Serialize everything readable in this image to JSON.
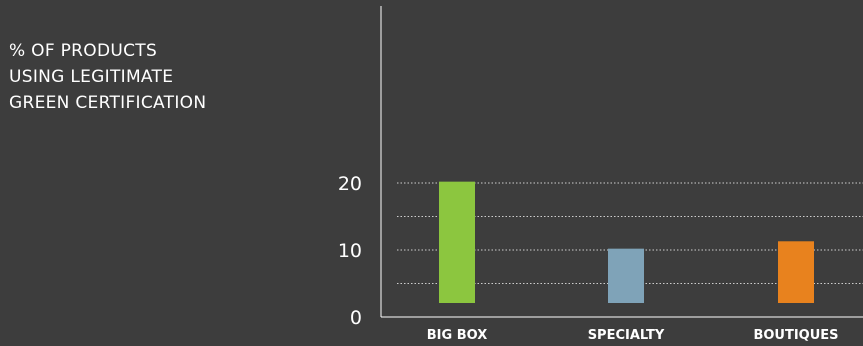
{
  "chart_data": {
    "type": "bar",
    "title": "% OF PRODUCTS\nUSING LEGITIMATE\nGREEN CERTIFICATION",
    "categories": [
      "BIG BOX",
      "SPECIALTY",
      "BOUTIQUES"
    ],
    "values": [
      20.2,
      10.2,
      11.3
    ],
    "colors": [
      "#8cc63f",
      "#7fa3b8",
      "#e8821e"
    ],
    "yticks": [
      0,
      10,
      20
    ],
    "ylim": [
      0,
      22
    ],
    "gridlines": [
      5,
      10,
      15,
      20
    ],
    "grid": true,
    "grid_color": "#ffffff",
    "axis_color": "#ffffff",
    "background": "#3d3d3d"
  }
}
